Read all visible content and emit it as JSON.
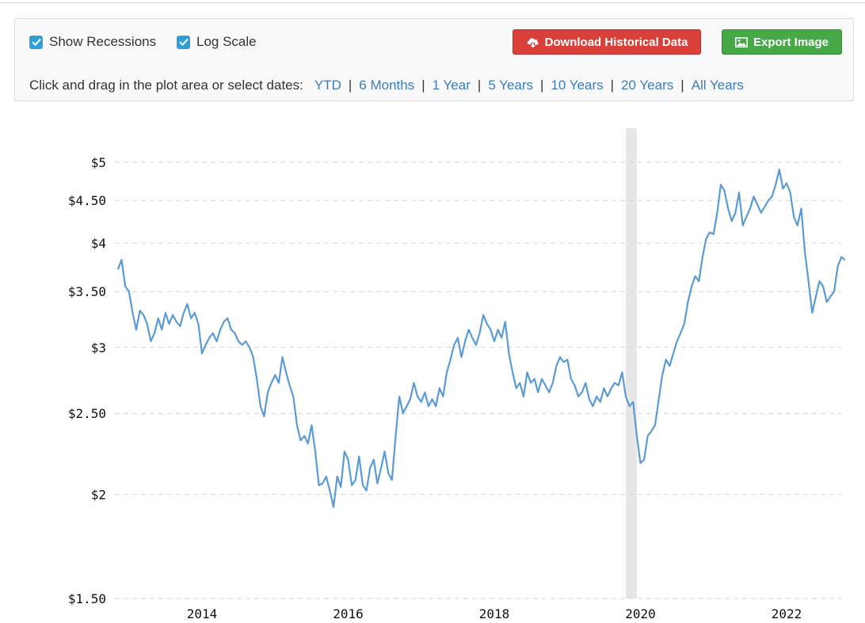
{
  "toolbar": {
    "show_recessions_label": "Show Recessions",
    "log_scale_label": "Log Scale",
    "download_label": "Download Historical Data",
    "export_label": "Export Image",
    "range_prompt": "Click and drag in the plot area or select dates:",
    "ranges": [
      "YTD",
      "6 Months",
      "1 Year",
      "5 Years",
      "10 Years",
      "20 Years",
      "All Years"
    ]
  },
  "colors": {
    "line": "#5b9bd5",
    "recession": "#e6e6e6",
    "download_button": "#d9403a",
    "export_button": "#47a847",
    "link": "#3a7dbf",
    "checkbox": "#2f9fd6"
  },
  "chart_data": {
    "type": "line",
    "title": "",
    "xlabel": "",
    "ylabel": "",
    "y_scale": "log",
    "ylim": [
      1.5,
      5.25
    ],
    "xlim": [
      2012.85,
      2022.8
    ],
    "grid": "horizontal-dashed",
    "yticks": [
      {
        "value": 5,
        "label": "$5"
      },
      {
        "value": 4.5,
        "label": "$4.50"
      },
      {
        "value": 4,
        "label": "$4"
      },
      {
        "value": 3.5,
        "label": "$3.50"
      },
      {
        "value": 3,
        "label": "$3"
      },
      {
        "value": 2.5,
        "label": "$2.50"
      },
      {
        "value": 2,
        "label": "$2"
      },
      {
        "value": 1.5,
        "label": "$1.50"
      }
    ],
    "xticks": [
      {
        "value": 2014,
        "label": "2014"
      },
      {
        "value": 2016,
        "label": "2016"
      },
      {
        "value": 2018,
        "label": "2018"
      },
      {
        "value": 2020,
        "label": "2020"
      },
      {
        "value": 2022,
        "label": "2022"
      }
    ],
    "recessions": [
      [
        2019.8,
        2019.95
      ]
    ],
    "series": [
      {
        "x": [
          2012.85,
          2012.9,
          2012.95,
          2013.0,
          2013.05,
          2013.1,
          2013.15,
          2013.2,
          2013.25,
          2013.3,
          2013.35,
          2013.4,
          2013.45,
          2013.5,
          2013.55,
          2013.6,
          2013.65,
          2013.7,
          2013.75,
          2013.8,
          2013.85,
          2013.9,
          2013.95,
          2014.0,
          2014.05,
          2014.1,
          2014.15,
          2014.2,
          2014.25,
          2014.3,
          2014.35,
          2014.4,
          2014.45,
          2014.5,
          2014.55,
          2014.6,
          2014.65,
          2014.7,
          2014.75,
          2014.8,
          2014.85,
          2014.9,
          2014.95,
          2015.0,
          2015.05,
          2015.1,
          2015.15,
          2015.2,
          2015.25,
          2015.3,
          2015.35,
          2015.4,
          2015.45,
          2015.5,
          2015.55,
          2015.6,
          2015.65,
          2015.7,
          2015.75,
          2015.8,
          2015.85,
          2015.9,
          2015.95,
          2016.0,
          2016.05,
          2016.1,
          2016.15,
          2016.2,
          2016.25,
          2016.3,
          2016.35,
          2016.4,
          2016.45,
          2016.5,
          2016.55,
          2016.6,
          2016.65,
          2016.7,
          2016.75,
          2016.8,
          2016.85,
          2016.9,
          2016.95,
          2017.0,
          2017.05,
          2017.1,
          2017.15,
          2017.2,
          2017.25,
          2017.3,
          2017.35,
          2017.4,
          2017.45,
          2017.5,
          2017.55,
          2017.6,
          2017.65,
          2017.7,
          2017.75,
          2017.8,
          2017.85,
          2017.9,
          2017.95,
          2018.0,
          2018.05,
          2018.1,
          2018.15,
          2018.2,
          2018.25,
          2018.3,
          2018.35,
          2018.4,
          2018.45,
          2018.5,
          2018.55,
          2018.6,
          2018.65,
          2018.7,
          2018.75,
          2018.8,
          2018.85,
          2018.9,
          2018.95,
          2019.0,
          2019.05,
          2019.1,
          2019.15,
          2019.2,
          2019.25,
          2019.3,
          2019.35,
          2019.4,
          2019.45,
          2019.5,
          2019.55,
          2019.6,
          2019.65,
          2019.7,
          2019.75,
          2019.8,
          2019.85,
          2019.9,
          2019.95,
          2020.0,
          2020.05,
          2020.1,
          2020.15,
          2020.2,
          2020.25,
          2020.3,
          2020.35,
          2020.4,
          2020.45,
          2020.5,
          2020.55,
          2020.6,
          2020.65,
          2020.7,
          2020.75,
          2020.8,
          2020.85,
          2020.9,
          2020.95,
          2021.0,
          2021.05,
          2021.1,
          2021.15,
          2021.2,
          2021.25,
          2021.3,
          2021.35,
          2021.4,
          2021.45,
          2021.5,
          2021.55,
          2021.6,
          2021.65,
          2021.7,
          2021.75,
          2021.8,
          2021.85,
          2021.9,
          2021.95,
          2022.0,
          2022.05,
          2022.1,
          2022.15,
          2022.2,
          2022.25,
          2022.3,
          2022.35,
          2022.4,
          2022.45,
          2022.5,
          2022.55,
          2022.6,
          2022.65,
          2022.7,
          2022.75,
          2022.8
        ],
        "values": [
          3.72,
          3.82,
          3.55,
          3.5,
          3.3,
          3.15,
          3.32,
          3.28,
          3.2,
          3.05,
          3.12,
          3.25,
          3.15,
          3.3,
          3.2,
          3.28,
          3.22,
          3.18,
          3.3,
          3.38,
          3.25,
          3.3,
          3.2,
          2.95,
          3.02,
          3.08,
          3.12,
          3.05,
          3.15,
          3.22,
          3.25,
          3.15,
          3.12,
          3.05,
          3.02,
          3.05,
          3.0,
          2.92,
          2.75,
          2.55,
          2.48,
          2.65,
          2.72,
          2.78,
          2.72,
          2.92,
          2.8,
          2.7,
          2.62,
          2.42,
          2.32,
          2.35,
          2.3,
          2.42,
          2.25,
          2.05,
          2.06,
          2.1,
          2.02,
          1.93,
          2.1,
          2.04,
          2.25,
          2.2,
          2.05,
          2.08,
          2.22,
          2.05,
          2.02,
          2.15,
          2.2,
          2.06,
          2.15,
          2.25,
          2.12,
          2.08,
          2.35,
          2.62,
          2.5,
          2.55,
          2.6,
          2.72,
          2.62,
          2.58,
          2.65,
          2.55,
          2.6,
          2.55,
          2.68,
          2.62,
          2.8,
          2.9,
          3.02,
          3.08,
          2.92,
          3.05,
          3.15,
          3.08,
          3.02,
          3.12,
          3.28,
          3.2,
          3.15,
          3.05,
          3.15,
          3.08,
          3.22,
          2.95,
          2.8,
          2.68,
          2.72,
          2.62,
          2.8,
          2.72,
          2.75,
          2.65,
          2.75,
          2.7,
          2.65,
          2.72,
          2.85,
          2.92,
          2.88,
          2.9,
          2.75,
          2.7,
          2.62,
          2.65,
          2.72,
          2.6,
          2.55,
          2.62,
          2.58,
          2.68,
          2.62,
          2.68,
          2.72,
          2.7,
          2.8,
          2.62,
          2.55,
          2.58,
          2.35,
          2.18,
          2.2,
          2.35,
          2.38,
          2.42,
          2.6,
          2.78,
          2.9,
          2.85,
          2.95,
          3.05,
          3.12,
          3.2,
          3.4,
          3.55,
          3.65,
          3.6,
          3.85,
          4.05,
          4.12,
          4.1,
          4.35,
          4.7,
          4.62,
          4.4,
          4.25,
          4.35,
          4.6,
          4.2,
          4.3,
          4.4,
          4.55,
          4.45,
          4.35,
          4.42,
          4.5,
          4.55,
          4.7,
          4.9,
          4.65,
          4.72,
          4.6,
          4.3,
          4.2,
          4.4,
          3.9,
          3.6,
          3.3,
          3.45,
          3.6,
          3.55,
          3.4,
          3.45,
          3.5,
          3.75,
          3.85,
          3.82
        ],
        "color": "#5b9bd5"
      }
    ]
  }
}
